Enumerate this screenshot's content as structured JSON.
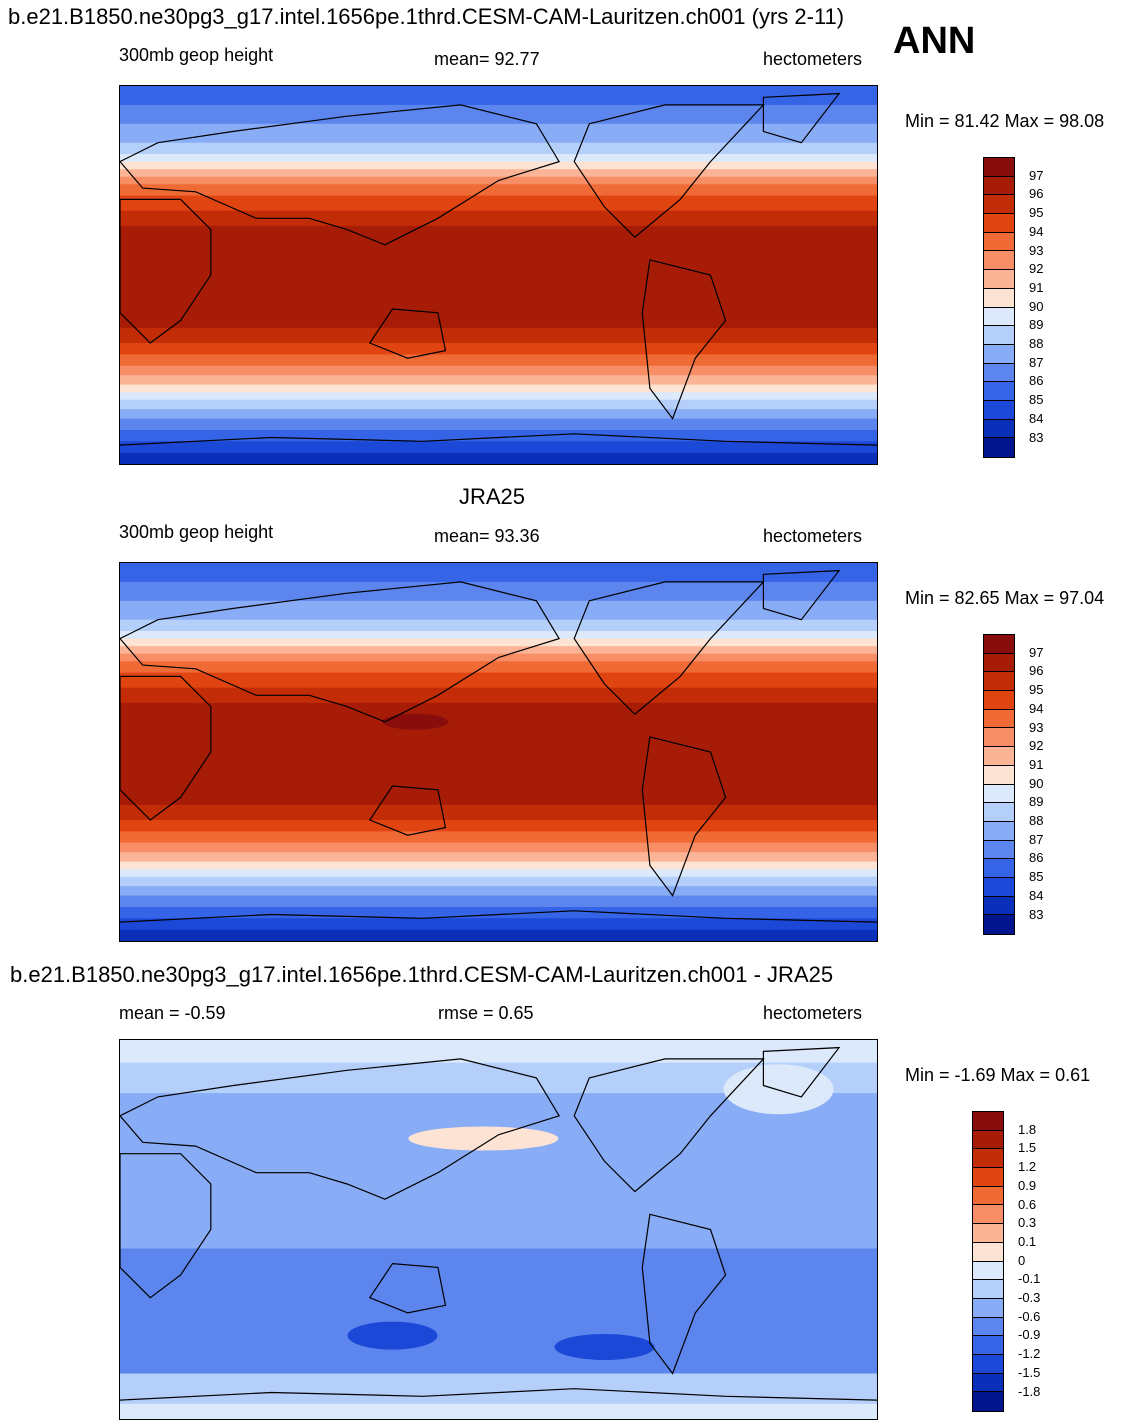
{
  "season": "ANN",
  "panels": [
    {
      "title": "b.e21.B1850.ne30pg3_g17.intel.1656pe.1thrd.CESM-CAM-Lauritzen.ch001 (yrs 2-11)",
      "left_label": "300mb geop height",
      "center_label": "mean=  92.77",
      "right_label": "hectometers",
      "minmax": "Min =  81.42 Max =  98.08",
      "colorbar_labels": [
        "97",
        "96",
        "95",
        "94",
        "93",
        "92",
        "91",
        "90",
        "89",
        "88",
        "87",
        "86",
        "85",
        "84",
        "83"
      ],
      "colorbar_colors": [
        "#8a0d0d",
        "#a61c06",
        "#c22c06",
        "#e04410",
        "#f06a35",
        "#f88e66",
        "#fbb596",
        "#fde3d3",
        "#dbe9fb",
        "#b3cffa",
        "#88acf5",
        "#5c86ee",
        "#3565e6",
        "#1c48d8",
        "#0a2fb8",
        "#03158c"
      ],
      "min": 81.42,
      "max": 98.08
    },
    {
      "title": "JRA25",
      "left_label": "300mb geop height",
      "center_label": "mean=  93.36",
      "right_label": "hectometers",
      "minmax": "Min =  82.65 Max =  97.04",
      "colorbar_labels": [
        "97",
        "96",
        "95",
        "94",
        "93",
        "92",
        "91",
        "90",
        "89",
        "88",
        "87",
        "86",
        "85",
        "84",
        "83"
      ],
      "colorbar_colors": [
        "#8a0d0d",
        "#a61c06",
        "#c22c06",
        "#e04410",
        "#f06a35",
        "#f88e66",
        "#fbb596",
        "#fde3d3",
        "#dbe9fb",
        "#b3cffa",
        "#88acf5",
        "#5c86ee",
        "#3565e6",
        "#1c48d8",
        "#0a2fb8",
        "#03158c"
      ],
      "min": 82.65,
      "max": 97.04
    },
    {
      "title": "b.e21.B1850.ne30pg3_g17.intel.1656pe.1thrd.CESM-CAM-Lauritzen.ch001 - JRA25",
      "left_label": "mean =  -0.59",
      "center_label": "rmse =   0.65",
      "right_label": "hectometers",
      "minmax": "Min =  -1.69 Max =   0.61",
      "colorbar_labels": [
        "1.8",
        "1.5",
        "1.2",
        "0.9",
        "0.6",
        "0.3",
        "0.1",
        "0",
        "-0.1",
        "-0.3",
        "-0.6",
        "-0.9",
        "-1.2",
        "-1.5",
        "-1.8"
      ],
      "colorbar_colors": [
        "#8a0d0d",
        "#a61c06",
        "#c22c06",
        "#e04410",
        "#f06a35",
        "#f88e66",
        "#fbb596",
        "#fde3d3",
        "#dbe9fb",
        "#b3cffa",
        "#88acf5",
        "#5c86ee",
        "#3565e6",
        "#1c48d8",
        "#0a2fb8",
        "#03158c"
      ],
      "min": -1.69,
      "max": 0.61
    }
  ]
}
